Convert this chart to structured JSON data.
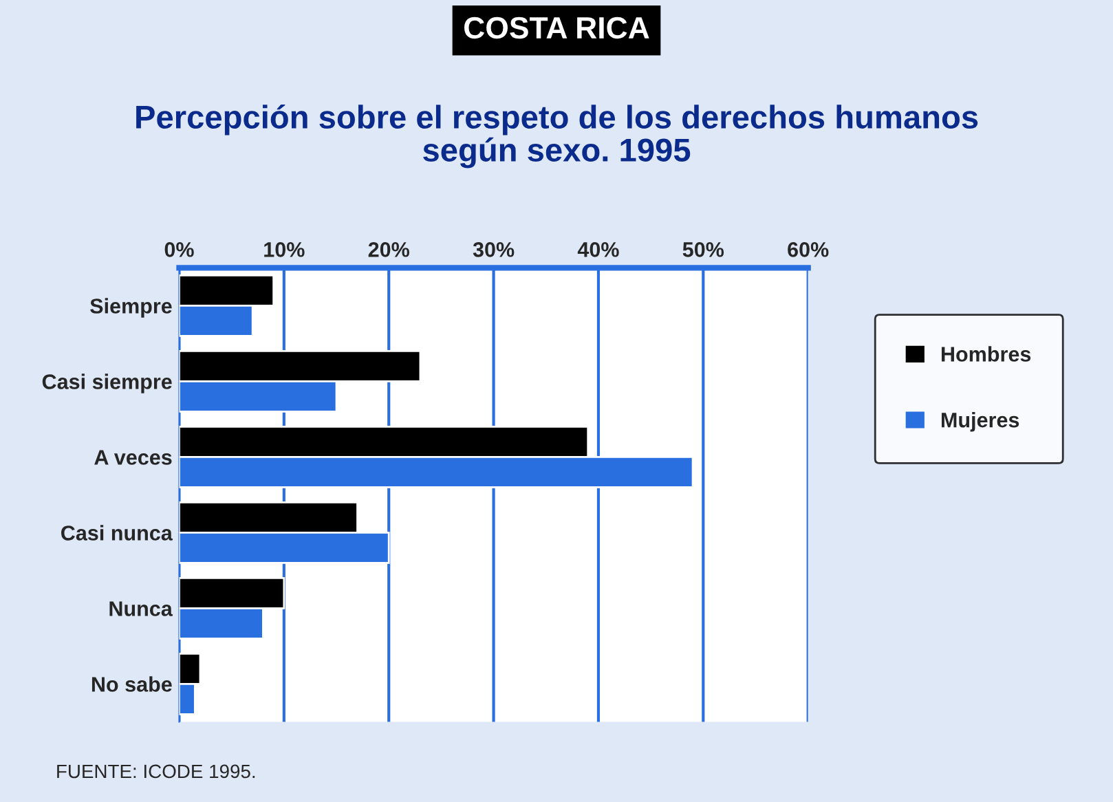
{
  "chart_data": {
    "type": "bar",
    "orientation": "horizontal",
    "title": "COSTA RICA",
    "subtitle": "Percepción sobre el respeto de los derechos humanos\nsegún sexo. 1995",
    "categories": [
      "Siempre",
      "Casi siempre",
      "A veces",
      "Casi nunca",
      "Nunca",
      "No sabe"
    ],
    "series": [
      {
        "name": "Hombres",
        "color": "#000000",
        "values": [
          9,
          23,
          39,
          17,
          10,
          2
        ]
      },
      {
        "name": "Mujeres",
        "color": "#2a6fe0",
        "values": [
          7,
          15,
          49,
          20,
          8,
          1.5
        ]
      }
    ],
    "xlim": [
      0,
      60
    ],
    "xticks": [
      {
        "value": 0,
        "label": "0%"
      },
      {
        "value": 10,
        "label": "10%"
      },
      {
        "value": 20,
        "label": "20%"
      },
      {
        "value": 30,
        "label": "30%"
      },
      {
        "value": 40,
        "label": "40%"
      },
      {
        "value": 50,
        "label": "50%"
      },
      {
        "value": 60,
        "label": "60%"
      }
    ],
    "grid": "x",
    "legend": "right",
    "annotations": [
      "FUENTE: ICODE 1995."
    ]
  }
}
